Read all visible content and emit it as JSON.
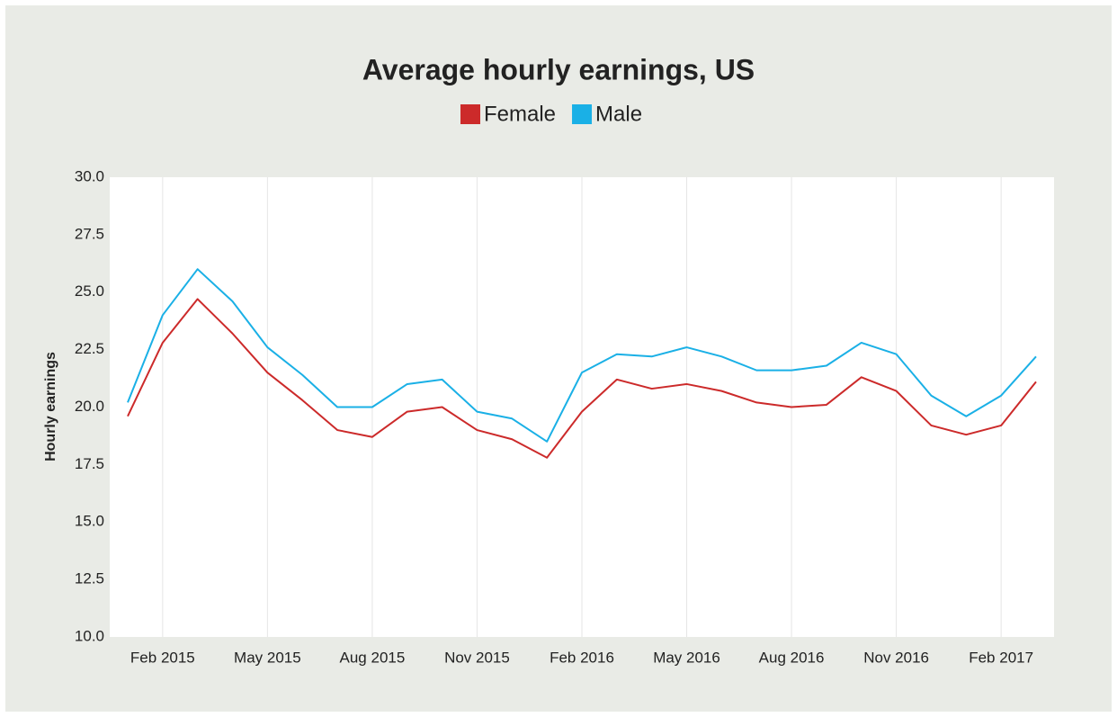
{
  "chart_data": {
    "type": "line",
    "title": "Average hourly earnings, US",
    "y_label": "Hourly earnings",
    "x": [
      "2015-01",
      "2015-02",
      "2015-03",
      "2015-04",
      "2015-05",
      "2015-06",
      "2015-07",
      "2015-08",
      "2015-09",
      "2015-10",
      "2015-11",
      "2015-12",
      "2016-01",
      "2016-02",
      "2016-03",
      "2016-04",
      "2016-05",
      "2016-06",
      "2016-07",
      "2016-08",
      "2016-09",
      "2016-10",
      "2016-11",
      "2016-12",
      "2017-01",
      "2017-02",
      "2017-03"
    ],
    "series": [
      {
        "name": "Female",
        "color": "#cc2a2a",
        "values": [
          19.6,
          22.8,
          24.7,
          23.2,
          21.5,
          20.3,
          19.0,
          18.7,
          19.8,
          20.0,
          19.0,
          18.6,
          17.8,
          19.8,
          21.2,
          20.8,
          21.0,
          20.7,
          20.2,
          20.0,
          20.1,
          21.3,
          20.7,
          19.2,
          18.8,
          19.2,
          21.1
        ]
      },
      {
        "name": "Male",
        "color": "#1ab0e6",
        "values": [
          20.2,
          24.0,
          26.0,
          24.6,
          22.6,
          21.4,
          20.0,
          20.0,
          21.0,
          21.2,
          19.8,
          19.5,
          18.5,
          21.5,
          22.3,
          22.2,
          22.6,
          22.2,
          21.6,
          21.6,
          21.8,
          22.8,
          22.3,
          20.5,
          19.6,
          20.5,
          22.2
        ]
      }
    ],
    "xlim": [
      "2015-01",
      "2017-03"
    ],
    "xticks": [
      {
        "value": "2015-02",
        "label": "Feb 2015"
      },
      {
        "value": "2015-05",
        "label": "May 2015"
      },
      {
        "value": "2015-08",
        "label": "Aug 2015"
      },
      {
        "value": "2015-11",
        "label": "Nov 2015"
      },
      {
        "value": "2016-02",
        "label": "Feb 2016"
      },
      {
        "value": "2016-05",
        "label": "May 2016"
      },
      {
        "value": "2016-08",
        "label": "Aug 2016"
      },
      {
        "value": "2016-11",
        "label": "Nov 2016"
      },
      {
        "value": "2017-02",
        "label": "Feb 2017"
      }
    ],
    "ylim": [
      10,
      30
    ],
    "yticks": [
      {
        "value": 10,
        "label": "10.0"
      },
      12.5,
      {
        "value": 15,
        "label": "15.0"
      },
      17.5,
      {
        "value": 20,
        "label": "20.0"
      },
      22.5,
      {
        "value": 25,
        "label": "25.0"
      },
      27.5,
      {
        "value": 30,
        "label": "30.0"
      }
    ],
    "grid": true
  }
}
